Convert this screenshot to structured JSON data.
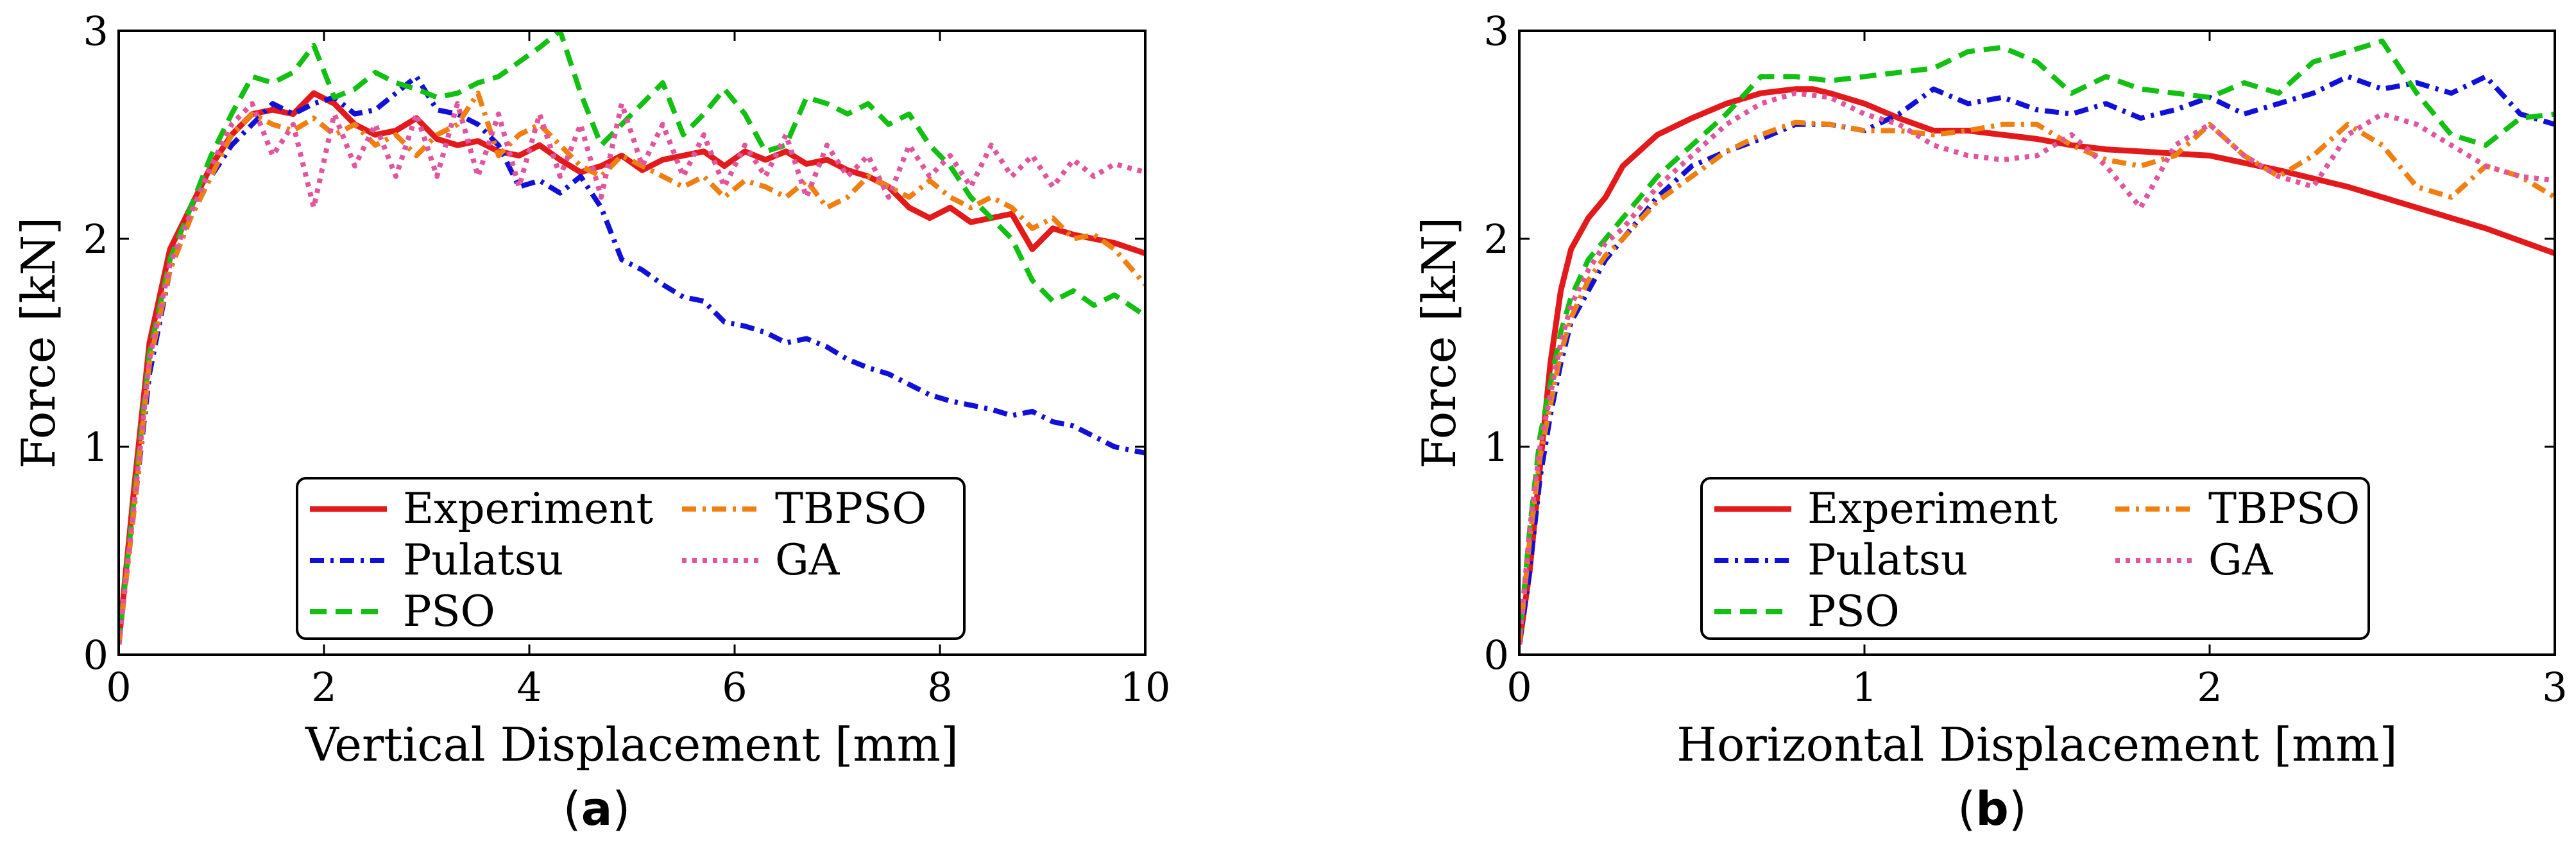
{
  "figure": {
    "panels": [
      {
        "label_open": "(",
        "label_letter": "a",
        "label_close": ")"
      },
      {
        "label_open": "(",
        "label_letter": "b",
        "label_close": ")"
      }
    ]
  },
  "chart_data": [
    {
      "type": "line",
      "title": "",
      "xlabel": "Vertical Displacement [mm]",
      "ylabel": "Force [kN]",
      "xlim": [
        0,
        10
      ],
      "ylim": [
        0,
        3
      ],
      "xticks": [
        0,
        2,
        4,
        6,
        8,
        10
      ],
      "xtick_labels": [
        "0",
        "2",
        "4",
        "6",
        "8",
        "10"
      ],
      "yticks": [
        0,
        1,
        2,
        3
      ],
      "ytick_labels": [
        "0",
        "1",
        "2",
        "3"
      ],
      "grid": false,
      "legend_position": "bottom-center",
      "series": [
        {
          "name": "Experiment",
          "color": "#e31a1c",
          "style": "solid",
          "x": [
            0,
            0.15,
            0.3,
            0.5,
            0.7,
            0.9,
            1.1,
            1.3,
            1.5,
            1.7,
            1.9,
            2.1,
            2.3,
            2.5,
            2.7,
            2.9,
            3.1,
            3.3,
            3.5,
            3.7,
            3.9,
            4.1,
            4.3,
            4.5,
            4.7,
            4.9,
            5.1,
            5.3,
            5.5,
            5.7,
            5.9,
            6.1,
            6.3,
            6.5,
            6.7,
            6.9,
            7.1,
            7.3,
            7.5,
            7.7,
            7.9,
            8.1,
            8.3,
            8.5,
            8.7,
            8.9,
            9.1,
            9.3,
            9.5,
            9.7,
            10
          ],
          "y": [
            0.05,
            0.8,
            1.5,
            1.95,
            2.15,
            2.35,
            2.5,
            2.6,
            2.62,
            2.6,
            2.7,
            2.65,
            2.55,
            2.5,
            2.52,
            2.58,
            2.48,
            2.45,
            2.47,
            2.42,
            2.4,
            2.45,
            2.38,
            2.32,
            2.35,
            2.4,
            2.33,
            2.38,
            2.4,
            2.42,
            2.35,
            2.42,
            2.38,
            2.42,
            2.36,
            2.38,
            2.33,
            2.3,
            2.25,
            2.15,
            2.1,
            2.15,
            2.08,
            2.1,
            2.12,
            1.95,
            2.05,
            2.02,
            2.0,
            1.98,
            1.93
          ]
        },
        {
          "name": "Pulatsu",
          "color": "#1010d8",
          "style": "dashdot",
          "x": [
            0,
            0.15,
            0.3,
            0.5,
            0.7,
            0.9,
            1.1,
            1.3,
            1.5,
            1.7,
            1.9,
            2.1,
            2.3,
            2.5,
            2.7,
            2.9,
            3.1,
            3.3,
            3.5,
            3.7,
            3.9,
            4.1,
            4.3,
            4.5,
            4.7,
            4.9,
            5.1,
            5.3,
            5.5,
            5.7,
            5.9,
            6.1,
            6.3,
            6.5,
            6.7,
            6.9,
            7.1,
            7.3,
            7.5,
            7.7,
            7.9,
            8.1,
            8.3,
            8.5,
            8.7,
            8.9,
            9.1,
            9.3,
            9.5,
            9.7,
            10
          ],
          "y": [
            0.05,
            0.7,
            1.35,
            1.85,
            2.1,
            2.3,
            2.45,
            2.55,
            2.65,
            2.6,
            2.65,
            2.68,
            2.6,
            2.62,
            2.7,
            2.78,
            2.62,
            2.6,
            2.55,
            2.45,
            2.25,
            2.28,
            2.22,
            2.3,
            2.15,
            1.9,
            1.85,
            1.78,
            1.72,
            1.7,
            1.6,
            1.58,
            1.55,
            1.5,
            1.52,
            1.48,
            1.42,
            1.38,
            1.35,
            1.3,
            1.25,
            1.22,
            1.2,
            1.18,
            1.15,
            1.17,
            1.12,
            1.1,
            1.05,
            1.0,
            0.97
          ]
        },
        {
          "name": "PSO",
          "color": "#12c012",
          "style": "dashed",
          "x": [
            0,
            0.15,
            0.3,
            0.5,
            0.7,
            0.9,
            1.1,
            1.3,
            1.5,
            1.7,
            1.9,
            2.1,
            2.3,
            2.5,
            2.7,
            2.9,
            3.1,
            3.3,
            3.5,
            3.7,
            3.9,
            4.1,
            4.3,
            4.5,
            4.7,
            4.9,
            5.1,
            5.3,
            5.5,
            5.7,
            5.9,
            6.1,
            6.3,
            6.5,
            6.7,
            6.9,
            7.1,
            7.3,
            7.5,
            7.7,
            7.9,
            8.1,
            8.3,
            8.5,
            8.7,
            8.9,
            9.1,
            9.3,
            9.5,
            9.7,
            10
          ],
          "y": [
            0.05,
            0.75,
            1.45,
            1.9,
            2.15,
            2.4,
            2.6,
            2.78,
            2.75,
            2.8,
            2.93,
            2.68,
            2.72,
            2.8,
            2.75,
            2.72,
            2.68,
            2.7,
            2.75,
            2.78,
            2.85,
            2.92,
            3.0,
            2.7,
            2.45,
            2.55,
            2.65,
            2.75,
            2.5,
            2.6,
            2.72,
            2.6,
            2.42,
            2.45,
            2.68,
            2.65,
            2.6,
            2.65,
            2.55,
            2.6,
            2.45,
            2.35,
            2.2,
            2.1,
            2.0,
            1.8,
            1.7,
            1.75,
            1.68,
            1.73,
            1.63
          ]
        },
        {
          "name": "TBPSO",
          "color": "#f07f10",
          "style": "dashdot",
          "x": [
            0,
            0.15,
            0.3,
            0.5,
            0.7,
            0.9,
            1.1,
            1.3,
            1.5,
            1.7,
            1.9,
            2.1,
            2.3,
            2.5,
            2.7,
            2.9,
            3.1,
            3.3,
            3.5,
            3.7,
            3.9,
            4.1,
            4.3,
            4.5,
            4.7,
            4.9,
            5.1,
            5.3,
            5.5,
            5.7,
            5.9,
            6.1,
            6.3,
            6.5,
            6.7,
            6.9,
            7.1,
            7.3,
            7.5,
            7.7,
            7.9,
            8.1,
            8.3,
            8.5,
            8.7,
            8.9,
            9.1,
            9.3,
            9.5,
            9.7,
            10
          ],
          "y": [
            0.05,
            0.7,
            1.4,
            1.85,
            2.1,
            2.3,
            2.5,
            2.6,
            2.55,
            2.52,
            2.58,
            2.5,
            2.55,
            2.45,
            2.5,
            2.4,
            2.5,
            2.55,
            2.7,
            2.4,
            2.5,
            2.55,
            2.45,
            2.35,
            2.3,
            2.4,
            2.35,
            2.3,
            2.25,
            2.3,
            2.2,
            2.28,
            2.25,
            2.2,
            2.28,
            2.15,
            2.2,
            2.3,
            2.25,
            2.2,
            2.28,
            2.2,
            2.15,
            2.2,
            2.15,
            2.05,
            2.1,
            2.0,
            2.02,
            1.95,
            1.78
          ]
        },
        {
          "name": "GA",
          "color": "#e0559e",
          "style": "dotted",
          "x": [
            0,
            0.15,
            0.3,
            0.5,
            0.7,
            0.9,
            1.1,
            1.3,
            1.5,
            1.7,
            1.9,
            2.1,
            2.3,
            2.5,
            2.7,
            2.9,
            3.1,
            3.3,
            3.5,
            3.7,
            3.9,
            4.1,
            4.3,
            4.5,
            4.7,
            4.9,
            5.1,
            5.3,
            5.5,
            5.7,
            5.9,
            6.1,
            6.3,
            6.5,
            6.7,
            6.9,
            7.1,
            7.3,
            7.5,
            7.7,
            7.9,
            8.1,
            8.3,
            8.5,
            8.7,
            8.9,
            9.1,
            9.3,
            9.5,
            9.7,
            10
          ],
          "y": [
            0.05,
            0.72,
            1.42,
            1.88,
            2.12,
            2.35,
            2.55,
            2.65,
            2.4,
            2.55,
            2.15,
            2.6,
            2.35,
            2.55,
            2.3,
            2.6,
            2.3,
            2.65,
            2.3,
            2.6,
            2.25,
            2.6,
            2.3,
            2.55,
            2.2,
            2.65,
            2.35,
            2.55,
            2.3,
            2.5,
            2.25,
            2.45,
            2.3,
            2.5,
            2.2,
            2.45,
            2.3,
            2.4,
            2.2,
            2.45,
            2.3,
            2.4,
            2.25,
            2.45,
            2.3,
            2.4,
            2.25,
            2.38,
            2.3,
            2.36,
            2.32
          ]
        }
      ]
    },
    {
      "type": "line",
      "title": "",
      "xlabel": "Horizontal Displacement [mm]",
      "ylabel": "Force [kN]",
      "xlim": [
        0,
        3
      ],
      "ylim": [
        0,
        3
      ],
      "xticks": [
        0,
        1,
        2,
        3
      ],
      "xtick_labels": [
        "0",
        "1",
        "2",
        "3"
      ],
      "yticks": [
        0,
        1,
        2,
        3
      ],
      "ytick_labels": [
        "0",
        "1",
        "2",
        "3"
      ],
      "grid": false,
      "legend_position": "bottom-center",
      "series": [
        {
          "name": "Experiment",
          "color": "#e31a1c",
          "style": "solid",
          "x": [
            0,
            0.03,
            0.06,
            0.09,
            0.12,
            0.15,
            0.2,
            0.25,
            0.3,
            0.4,
            0.5,
            0.6,
            0.7,
            0.8,
            0.85,
            0.9,
            1.0,
            1.1,
            1.2,
            1.3,
            1.4,
            1.5,
            1.6,
            1.7,
            1.8,
            1.9,
            2.0,
            2.2,
            2.4,
            2.6,
            2.8,
            3.0
          ],
          "y": [
            0.05,
            0.4,
            0.9,
            1.4,
            1.75,
            1.95,
            2.1,
            2.2,
            2.35,
            2.5,
            2.58,
            2.65,
            2.7,
            2.72,
            2.72,
            2.7,
            2.65,
            2.58,
            2.52,
            2.52,
            2.5,
            2.48,
            2.45,
            2.43,
            2.42,
            2.41,
            2.4,
            2.33,
            2.25,
            2.15,
            2.05,
            1.93
          ]
        },
        {
          "name": "Pulatsu",
          "color": "#1010d8",
          "style": "dashdot",
          "x": [
            0,
            0.03,
            0.06,
            0.09,
            0.12,
            0.15,
            0.2,
            0.25,
            0.3,
            0.4,
            0.5,
            0.6,
            0.7,
            0.8,
            0.9,
            1.0,
            1.1,
            1.2,
            1.3,
            1.4,
            1.5,
            1.6,
            1.7,
            1.8,
            1.9,
            2.0,
            2.1,
            2.2,
            2.3,
            2.4,
            2.5,
            2.6,
            2.7,
            2.8,
            2.9,
            3.0
          ],
          "y": [
            0.05,
            0.4,
            0.85,
            1.15,
            1.4,
            1.6,
            1.75,
            1.9,
            2.0,
            2.2,
            2.35,
            2.42,
            2.48,
            2.55,
            2.55,
            2.52,
            2.6,
            2.72,
            2.65,
            2.68,
            2.62,
            2.6,
            2.65,
            2.58,
            2.62,
            2.68,
            2.6,
            2.65,
            2.7,
            2.78,
            2.72,
            2.75,
            2.7,
            2.78,
            2.6,
            2.55
          ]
        },
        {
          "name": "PSO",
          "color": "#12c012",
          "style": "dashed",
          "x": [
            0,
            0.03,
            0.06,
            0.09,
            0.12,
            0.15,
            0.2,
            0.25,
            0.3,
            0.4,
            0.5,
            0.6,
            0.7,
            0.8,
            0.9,
            1.0,
            1.1,
            1.2,
            1.3,
            1.4,
            1.5,
            1.6,
            1.7,
            1.8,
            1.9,
            2.0,
            2.1,
            2.2,
            2.3,
            2.4,
            2.5,
            2.6,
            2.7,
            2.8,
            2.9,
            3.0
          ],
          "y": [
            0.05,
            0.6,
            1.05,
            1.3,
            1.55,
            1.72,
            1.9,
            2.0,
            2.1,
            2.3,
            2.45,
            2.6,
            2.78,
            2.78,
            2.76,
            2.78,
            2.8,
            2.82,
            2.9,
            2.92,
            2.85,
            2.7,
            2.78,
            2.72,
            2.7,
            2.68,
            2.75,
            2.7,
            2.85,
            2.9,
            2.95,
            2.7,
            2.5,
            2.45,
            2.58,
            2.6
          ]
        },
        {
          "name": "TBPSO",
          "color": "#f07f10",
          "style": "dashdot",
          "x": [
            0,
            0.03,
            0.06,
            0.09,
            0.12,
            0.15,
            0.2,
            0.25,
            0.3,
            0.4,
            0.5,
            0.6,
            0.7,
            0.8,
            0.9,
            1.0,
            1.1,
            1.2,
            1.3,
            1.4,
            1.5,
            1.6,
            1.7,
            1.8,
            1.9,
            2.0,
            2.1,
            2.2,
            2.3,
            2.4,
            2.5,
            2.6,
            2.7,
            2.8,
            2.9,
            3.0
          ],
          "y": [
            0.05,
            0.55,
            0.95,
            1.2,
            1.45,
            1.62,
            1.8,
            1.92,
            2.0,
            2.18,
            2.3,
            2.42,
            2.5,
            2.56,
            2.55,
            2.52,
            2.52,
            2.5,
            2.52,
            2.55,
            2.55,
            2.45,
            2.38,
            2.35,
            2.4,
            2.55,
            2.4,
            2.3,
            2.4,
            2.55,
            2.45,
            2.25,
            2.2,
            2.35,
            2.3,
            2.2
          ]
        },
        {
          "name": "GA",
          "color": "#e0559e",
          "style": "dotted",
          "x": [
            0,
            0.03,
            0.06,
            0.09,
            0.12,
            0.15,
            0.2,
            0.25,
            0.3,
            0.4,
            0.5,
            0.6,
            0.7,
            0.8,
            0.9,
            1.0,
            1.1,
            1.2,
            1.3,
            1.4,
            1.5,
            1.6,
            1.7,
            1.8,
            1.9,
            2.0,
            2.1,
            2.2,
            2.3,
            2.4,
            2.5,
            2.6,
            2.7,
            2.8,
            2.9,
            3.0
          ],
          "y": [
            0.05,
            0.6,
            1.0,
            1.25,
            1.5,
            1.68,
            1.85,
            1.98,
            2.05,
            2.25,
            2.4,
            2.55,
            2.65,
            2.7,
            2.68,
            2.6,
            2.55,
            2.45,
            2.4,
            2.38,
            2.4,
            2.5,
            2.35,
            2.15,
            2.45,
            2.55,
            2.4,
            2.3,
            2.25,
            2.5,
            2.6,
            2.55,
            2.45,
            2.35,
            2.3,
            2.28
          ]
        }
      ]
    }
  ]
}
